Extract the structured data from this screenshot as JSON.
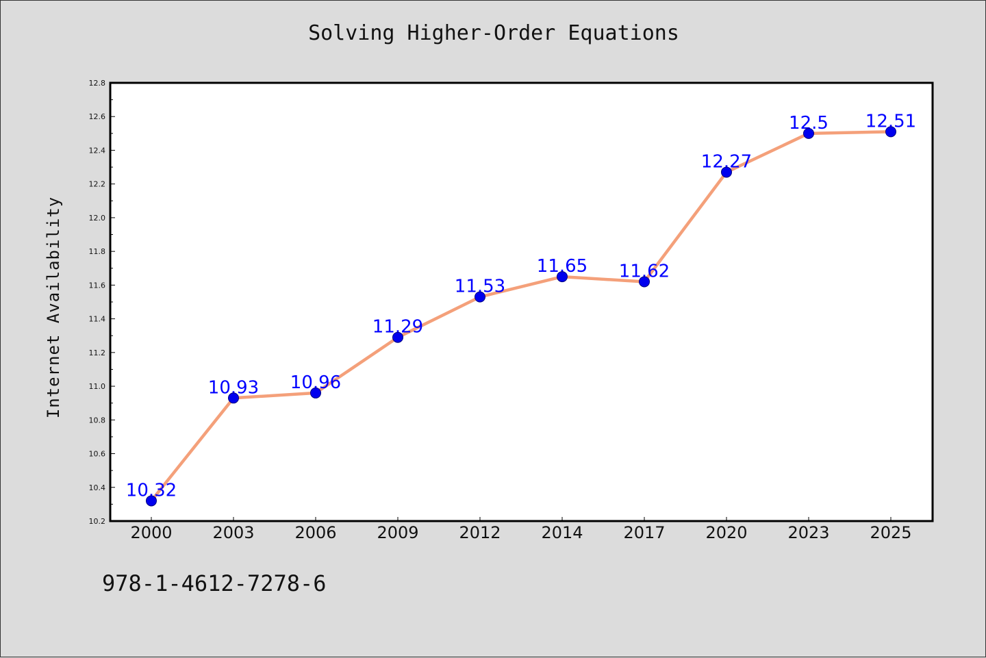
{
  "title": "Solving Higher-Order Equations",
  "footnote": "978-1-4612-7278-6",
  "chart_data": {
    "type": "line",
    "title": "Solving Higher-Order Equations",
    "xlabel": "",
    "ylabel": "Internet Availability",
    "categories": [
      "2000",
      "2003",
      "2006",
      "2009",
      "2012",
      "2014",
      "2017",
      "2020",
      "2023",
      "2025"
    ],
    "series": [
      {
        "values": [
          10.32,
          10.93,
          10.96,
          11.29,
          11.53,
          11.65,
          11.62,
          12.27,
          12.5,
          12.51
        ],
        "labels": [
          "10.32",
          "10.93",
          "10.96",
          "11.29",
          "11.53",
          "11.65",
          "11.62",
          "12.27",
          "12.5",
          "12.51"
        ]
      }
    ],
    "ylim": [
      10.2,
      12.8
    ],
    "yticks": [
      "10.2",
      "10.4",
      "10.6",
      "10.8",
      "11.0",
      "11.2",
      "11.4",
      "11.6",
      "11.8",
      "12.0",
      "12.2",
      "12.4",
      "12.6",
      "12.8"
    ],
    "grid": false,
    "legend": "none",
    "colors": {
      "line": "#f4a07a",
      "marker": "#0000ee",
      "marker_edge": "#000080",
      "data_label": "#0000ff",
      "plot_background": "#ffffff",
      "page_background": "#dcdcdc"
    }
  }
}
